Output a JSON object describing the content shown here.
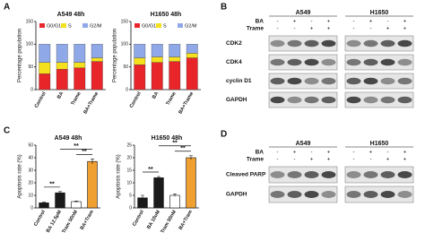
{
  "panels": {
    "a": "A",
    "b": "B",
    "c": "C",
    "d": "D"
  },
  "chart_data": [
    {
      "type": "stacked_bar",
      "title": "A549 48h",
      "y_label": "Percentage population",
      "categories": [
        "Control",
        "BA",
        "Trame",
        "BA+Trame"
      ],
      "series": [
        {
          "name": "G0/G1",
          "color": "#e8262a",
          "values": [
            35,
            45,
            48,
            62
          ]
        },
        {
          "name": "S",
          "color": "#f4e01c",
          "values": [
            25,
            15,
            12,
            8
          ]
        },
        {
          "name": "G2/M",
          "color": "#8fa8e8",
          "values": [
            40,
            40,
            40,
            30
          ]
        }
      ],
      "ylim": [
        0,
        150
      ],
      "yticks": [
        0,
        50,
        100,
        150
      ]
    },
    {
      "type": "stacked_bar",
      "title": "H1650 48h",
      "y_label": "Percentage population",
      "categories": [
        "Control",
        "BA",
        "Trame",
        "BA+Trame"
      ],
      "series": [
        {
          "name": "G0/G1",
          "color": "#e8262a",
          "values": [
            55,
            60,
            62,
            70
          ]
        },
        {
          "name": "S",
          "color": "#f4e01c",
          "values": [
            15,
            12,
            10,
            10
          ]
        },
        {
          "name": "G2/M",
          "color": "#8fa8e8",
          "values": [
            30,
            28,
            28,
            20
          ]
        }
      ],
      "ylim": [
        0,
        150
      ],
      "yticks": [
        0,
        50,
        100,
        150
      ]
    },
    {
      "type": "bar",
      "title": "A549 48h",
      "y_label": "Apoptosis rate (%)",
      "categories": [
        "Control",
        "BA 12.5μM",
        "Tram 50nM",
        "BA+Tram"
      ],
      "values": [
        4,
        12,
        5,
        37
      ],
      "errors": [
        0.5,
        1,
        0.5,
        2
      ],
      "colors": [
        "#1a1a1a",
        "#1a1a1a",
        "#ffffff",
        "#f0a030"
      ],
      "annotations": [
        "**",
        "**",
        "**"
      ],
      "ylim": [
        0,
        50
      ],
      "yticks": [
        0,
        10,
        20,
        30,
        40,
        50
      ]
    },
    {
      "type": "bar",
      "title": "H1650 48h",
      "y_label": "Apoptosis rate (%)",
      "categories": [
        "Control",
        "BA 10uM",
        "Tram 50nM",
        "BA+Tram"
      ],
      "values": [
        4,
        12,
        5,
        20
      ],
      "errors": [
        1,
        0.5,
        0.5,
        0.8
      ],
      "colors": [
        "#1a1a1a",
        "#1a1a1a",
        "#ffffff",
        "#f0a030"
      ],
      "annotations": [
        "**",
        "**",
        "**"
      ],
      "ylim": [
        0,
        25
      ],
      "yticks": [
        0,
        5,
        10,
        15,
        20,
        25
      ]
    }
  ],
  "blot_b": {
    "cell_lines": [
      "A549",
      "H1650"
    ],
    "treatments": [
      {
        "name": "BA",
        "signs": [
          "-",
          "+",
          "-",
          "+"
        ]
      },
      {
        "name": "Trame",
        "signs": [
          "-",
          "-",
          "+",
          "+"
        ]
      }
    ],
    "proteins": [
      "CDK2",
      "CDK4",
      "cyclin D1",
      "GAPDH"
    ]
  },
  "blot_d": {
    "cell_lines": [
      "A549",
      "H1650"
    ],
    "treatments": [
      {
        "name": "BA",
        "signs": [
          "-",
          "+",
          "-",
          "+"
        ]
      },
      {
        "name": "Trame",
        "signs": [
          "-",
          "-",
          "+",
          "+"
        ]
      }
    ],
    "proteins": [
      "Cleaved PARP",
      "GAPDH"
    ]
  }
}
